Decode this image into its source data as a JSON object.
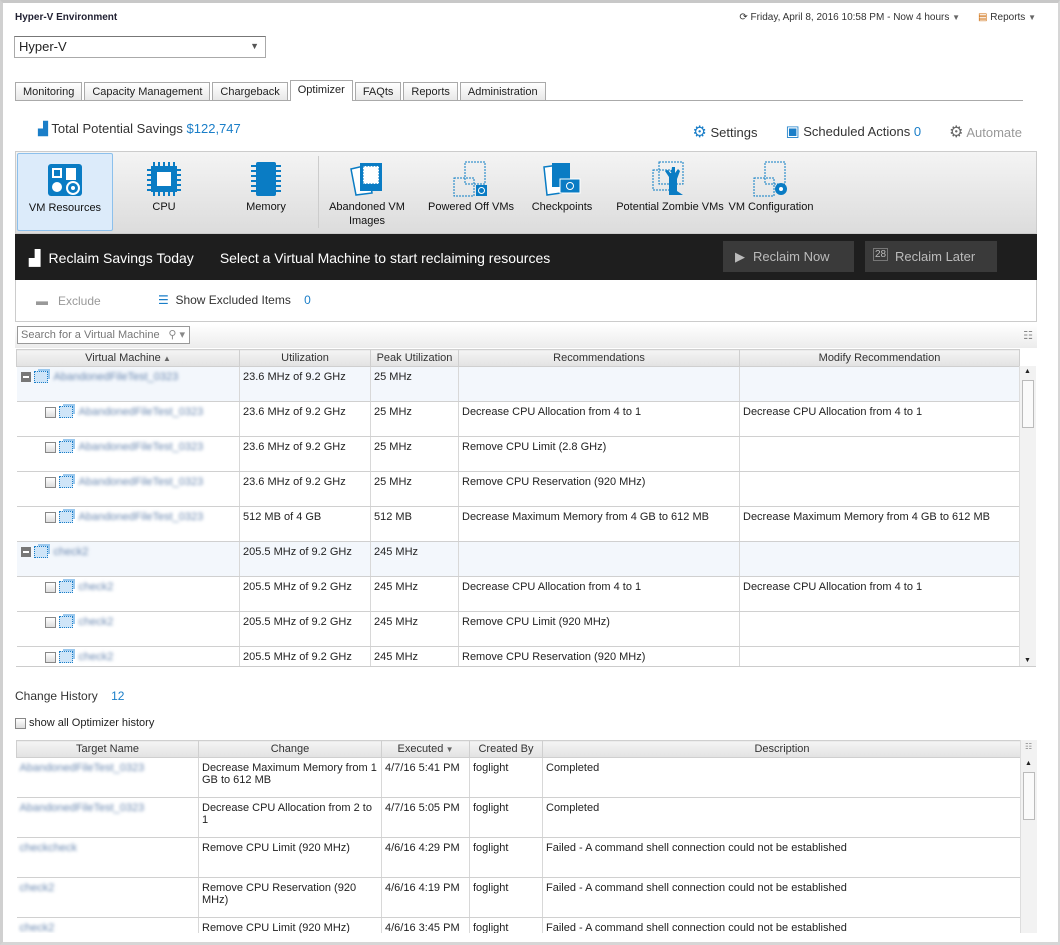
{
  "header": {
    "env_title": "Hyper-V Environment",
    "env_select": "Hyper-V",
    "time_range": "Friday, April 8, 2016 10:58 PM - Now 4 hours",
    "reports": "Reports"
  },
  "tabs": [
    "Monitoring",
    "Capacity Management",
    "Chargeback",
    "Optimizer",
    "FAQts",
    "Reports",
    "Administration"
  ],
  "active_tab": "Optimizer",
  "savings": {
    "label": "Total Potential Savings",
    "value": "$122,747"
  },
  "actions": {
    "settings": "Settings",
    "scheduled": "Scheduled Actions",
    "scheduled_count": "0",
    "automate": "Automate"
  },
  "toolbar": [
    {
      "label": "VM Resources",
      "icon": "vm-resources-icon"
    },
    {
      "label": "CPU",
      "icon": "cpu-icon"
    },
    {
      "label": "Memory",
      "icon": "memory-icon"
    },
    {
      "label": "Abandoned VM Images",
      "icon": "abandoned-images-icon"
    },
    {
      "label": "Powered Off VMs",
      "icon": "powered-off-icon"
    },
    {
      "label": "Checkpoints",
      "icon": "checkpoints-icon"
    },
    {
      "label": "Potential Zombie VMs",
      "icon": "zombie-icon"
    },
    {
      "label": "VM Configuration",
      "icon": "vm-config-icon"
    }
  ],
  "reclaim": {
    "title": "Reclaim Savings Today",
    "hint": "Select a Virtual Machine to start reclaiming resources",
    "now": "Reclaim Now",
    "later": "Reclaim Later"
  },
  "exclude": {
    "exclude": "Exclude",
    "show": "Show Excluded Items",
    "count": "0"
  },
  "search": {
    "placeholder": "Search for a Virtual Machine"
  },
  "vm_table": {
    "columns": [
      "Virtual Machine",
      "Utilization",
      "Peak Utilization",
      "Recommendations",
      "Modify Recommendation"
    ],
    "rows": [
      {
        "group": true,
        "name": "AbandonedFileTest_0323",
        "util": "23.6 MHz of 9.2 GHz",
        "peak": "25 MHz",
        "rec": "",
        "mod": ""
      },
      {
        "group": false,
        "name": "AbandonedFileTest_0323",
        "util": "23.6 MHz of 9.2 GHz",
        "peak": "25 MHz",
        "rec": "Decrease CPU Allocation from 4 to 1",
        "mod": "Decrease CPU Allocation from 4 to 1"
      },
      {
        "group": false,
        "name": "AbandonedFileTest_0323",
        "util": "23.6 MHz of 9.2 GHz",
        "peak": "25 MHz",
        "rec": "Remove CPU Limit (2.8 GHz)",
        "mod": ""
      },
      {
        "group": false,
        "name": "AbandonedFileTest_0323",
        "util": "23.6 MHz of 9.2 GHz",
        "peak": "25 MHz",
        "rec": "Remove CPU Reservation (920 MHz)",
        "mod": ""
      },
      {
        "group": false,
        "name": "AbandonedFileTest_0323",
        "util": "512 MB of 4 GB",
        "peak": "512 MB",
        "rec": "Decrease Maximum Memory from 4 GB to 612 MB",
        "mod": "Decrease Maximum Memory from 4 GB to 612 MB"
      },
      {
        "group": true,
        "name": "check2",
        "util": "205.5 MHz of 9.2 GHz",
        "peak": "245 MHz",
        "rec": "",
        "mod": ""
      },
      {
        "group": false,
        "name": "check2",
        "util": "205.5 MHz of 9.2 GHz",
        "peak": "245 MHz",
        "rec": "Decrease CPU Allocation from 4 to 1",
        "mod": "Decrease CPU Allocation from 4 to 1"
      },
      {
        "group": false,
        "name": "check2",
        "util": "205.5 MHz of 9.2 GHz",
        "peak": "245 MHz",
        "rec": "Remove CPU Limit (920 MHz)",
        "mod": ""
      },
      {
        "group": false,
        "name": "check2",
        "util": "205.5 MHz of 9.2 GHz",
        "peak": "245 MHz",
        "rec": "Remove CPU Reservation (920 MHz)",
        "mod": ""
      }
    ]
  },
  "history": {
    "title": "Change History",
    "count": "12",
    "show_all": "show all Optimizer history",
    "columns": [
      "Target Name",
      "Change",
      "Executed",
      "Created By",
      "Description"
    ],
    "rows": [
      {
        "target": "AbandonedFileTest_0323",
        "change": "Decrease Maximum Memory from 1 GB to 612 MB",
        "executed": "4/7/16 5:41 PM",
        "by": "foglight",
        "desc": "Completed"
      },
      {
        "target": "AbandonedFileTest_0323",
        "change": "Decrease CPU Allocation from 2 to 1",
        "executed": "4/7/16 5:05 PM",
        "by": "foglight",
        "desc": "Completed"
      },
      {
        "target": "checkcheck",
        "change": "Remove CPU Limit (920 MHz)",
        "executed": "4/6/16 4:29 PM",
        "by": "foglight",
        "desc": "Failed  - A command shell connection could not be established"
      },
      {
        "target": "check2",
        "change": "Remove CPU Reservation (920 MHz)",
        "executed": "4/6/16 4:19 PM",
        "by": "foglight",
        "desc": "Failed  - A command shell connection could not be established"
      },
      {
        "target": "check2",
        "change": "Remove CPU Limit (920 MHz)",
        "executed": "4/6/16 3:45 PM",
        "by": "foglight",
        "desc": "Failed  - A command shell connection could not be established"
      }
    ]
  },
  "colors": {
    "accent": "#1a7ec8",
    "dark_bar": "#1e1e1e"
  }
}
